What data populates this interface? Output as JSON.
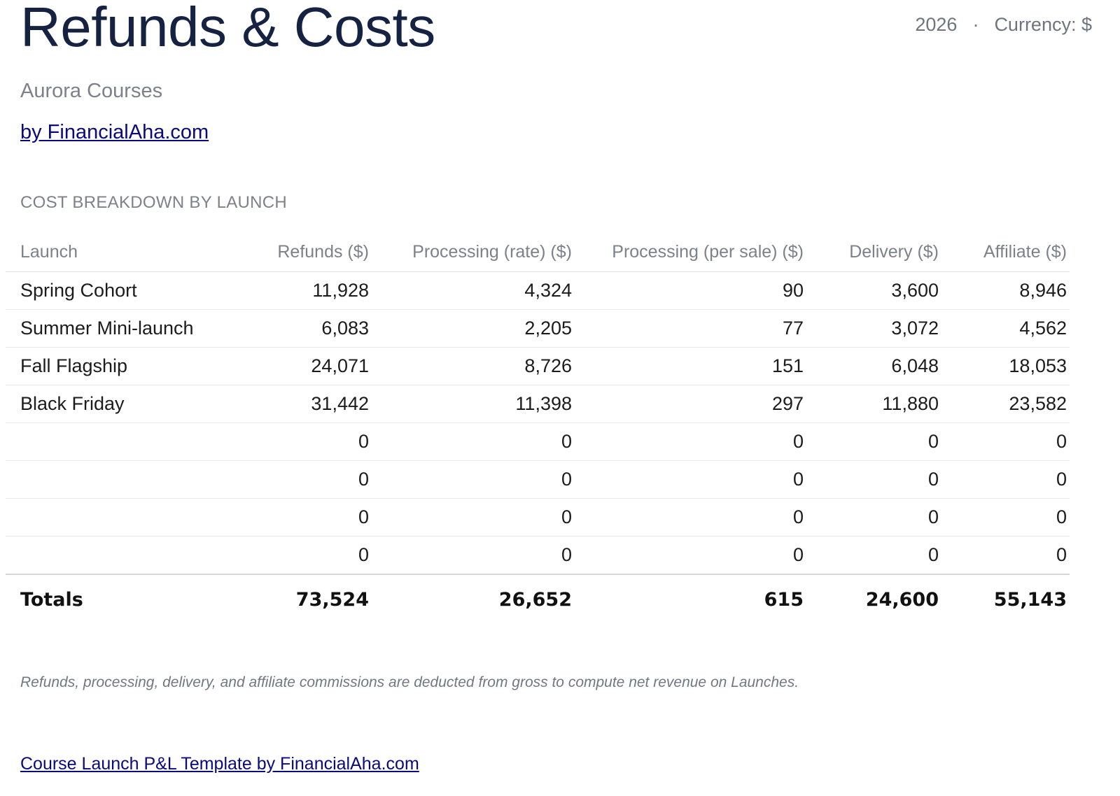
{
  "header": {
    "title": "Refunds & Costs",
    "year": "2026",
    "separator": "·",
    "currency": "Currency: $",
    "company": "Aurora Courses",
    "byline": "by FinancialAha.com"
  },
  "section": {
    "title": "COST BREAKDOWN BY LAUNCH"
  },
  "table": {
    "columns": [
      "Launch",
      "Refunds ($)",
      "Processing (rate) ($)",
      "Processing (per sale) ($)",
      "Delivery ($)",
      "Affiliate ($)"
    ],
    "rows": [
      [
        "Spring Cohort",
        "11,928",
        "4,324",
        "90",
        "3,600",
        "8,946"
      ],
      [
        "Summer Mini-launch",
        "6,083",
        "2,205",
        "77",
        "3,072",
        "4,562"
      ],
      [
        "Fall Flagship",
        "24,071",
        "8,726",
        "151",
        "6,048",
        "18,053"
      ],
      [
        "Black Friday",
        "31,442",
        "11,398",
        "297",
        "11,880",
        "23,582"
      ],
      [
        "",
        "0",
        "0",
        "0",
        "0",
        "0"
      ],
      [
        "",
        "0",
        "0",
        "0",
        "0",
        "0"
      ],
      [
        "",
        "0",
        "0",
        "0",
        "0",
        "0"
      ],
      [
        "",
        "0",
        "0",
        "0",
        "0",
        "0"
      ]
    ],
    "totals": [
      "Totals",
      "73,524",
      "26,652",
      "615",
      "24,600",
      "55,143"
    ]
  },
  "note": "Refunds, processing, delivery, and affiliate commissions are deducted from gross to compute net revenue on Launches.",
  "footer": {
    "link_text": "Course Launch P&L Template by FinancialAha.com"
  }
}
